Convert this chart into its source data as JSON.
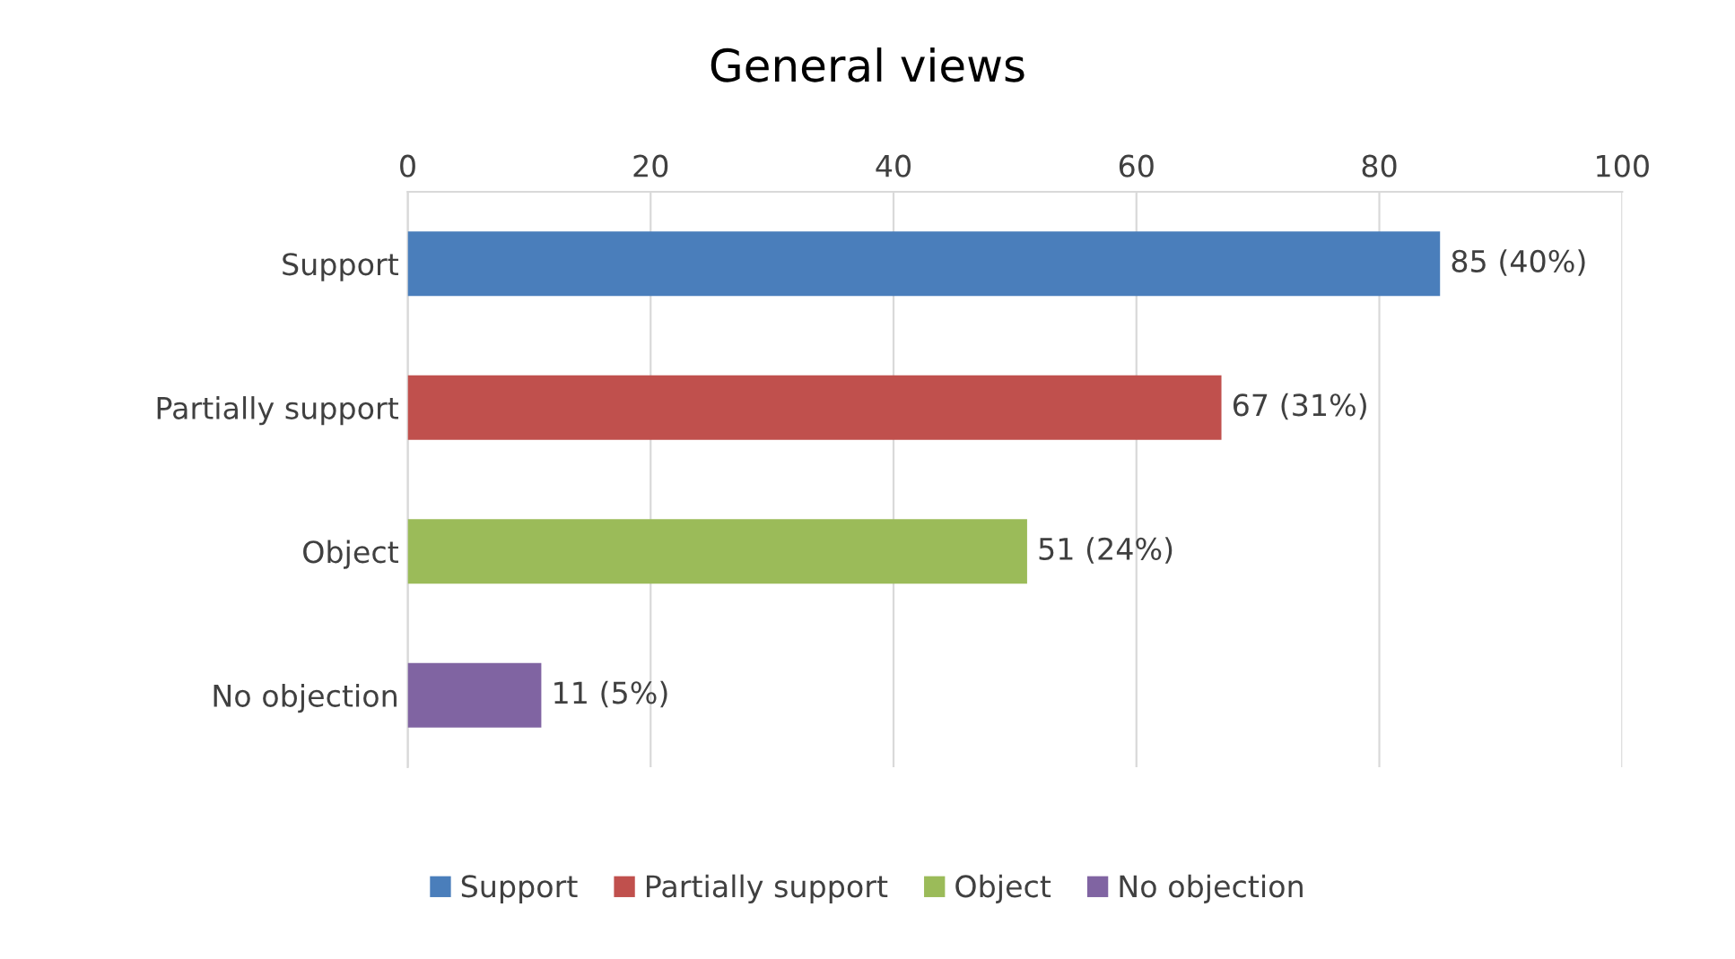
{
  "chart_data": {
    "type": "bar",
    "orientation": "horizontal",
    "title": "General views",
    "categories": [
      "Support",
      "Partially support",
      "Object",
      "No objection"
    ],
    "series": [
      {
        "name": "Support",
        "color": "#4a7ebb",
        "values": [
          85,
          null,
          null,
          null
        ],
        "value_labels": [
          "85 (40%)",
          null,
          null,
          null
        ]
      },
      {
        "name": "Partially support",
        "color": "#c0504d",
        "values": [
          null,
          67,
          null,
          null
        ],
        "value_labels": [
          null,
          "67 (31%)",
          null,
          null
        ]
      },
      {
        "name": "Object",
        "color": "#9bbb59",
        "values": [
          null,
          null,
          51,
          null
        ],
        "value_labels": [
          null,
          null,
          "51 (24%)",
          null
        ]
      },
      {
        "name": "No objection",
        "color": "#8064a2",
        "values": [
          null,
          null,
          null,
          11
        ],
        "value_labels": [
          null,
          null,
          null,
          "11 (5%)"
        ]
      }
    ],
    "xlim": [
      0,
      100
    ],
    "xticks": [
      0,
      20,
      40,
      60,
      80,
      100
    ],
    "grid": "x",
    "legend": "bottom"
  }
}
